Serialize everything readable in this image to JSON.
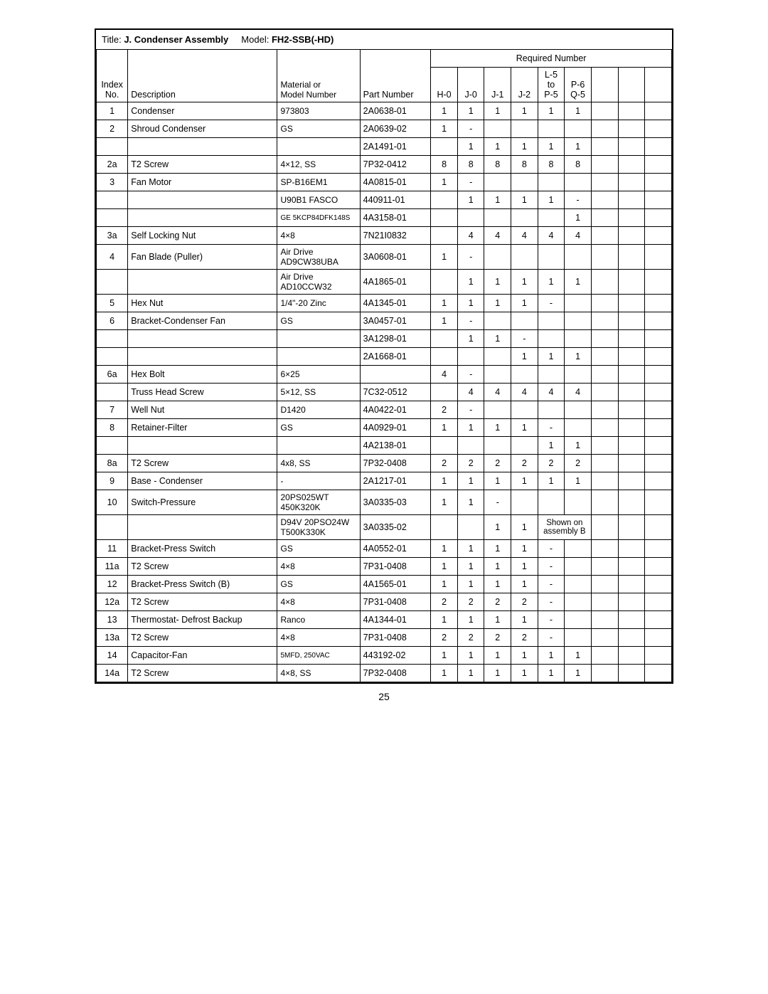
{
  "title_label": "Title:",
  "title_value": "J. Condenser Assembly",
  "model_label": "Model:",
  "model_value": "FH2-SSB(-HD)",
  "req_num_label": "Required Number",
  "headers": {
    "index": "Index\nNo.",
    "desc": "Description",
    "mat": "Material or\nModel Number",
    "part": "Part Number",
    "h0": "H-0",
    "j0": "J-0",
    "j1": "J-1",
    "j2": "J-2",
    "col5a": "L-5",
    "col5b": "to",
    "col5c": "P-5",
    "col6a": "P-6",
    "col6b": "Q-5"
  },
  "footnote": "Shown on assembly B",
  "page_num": "25",
  "rows": [
    {
      "idx": "1",
      "desc": "Condenser",
      "mat": "973803",
      "part": "2A0638-01",
      "v": [
        "1",
        "1",
        "1",
        "1",
        "1",
        "1",
        "",
        "",
        ""
      ]
    },
    {
      "idx": "2",
      "desc": "Shroud Condenser",
      "mat": "GS",
      "part": "2A0639-02",
      "v": [
        "1",
        "-",
        "",
        "",
        "",
        "",
        "",
        "",
        ""
      ]
    },
    {
      "idx": "",
      "desc": "",
      "mat": "",
      "part": "2A1491-01",
      "v": [
        "",
        "1",
        "1",
        "1",
        "1",
        "1",
        "",
        "",
        ""
      ]
    },
    {
      "idx": "2a",
      "desc": "T2 Screw",
      "mat": "4×12, SS",
      "part": "7P32-0412",
      "v": [
        "8",
        "8",
        "8",
        "8",
        "8",
        "8",
        "",
        "",
        ""
      ]
    },
    {
      "idx": "3",
      "desc": "Fan Motor",
      "mat": "SP-B16EM1",
      "part": "4A0815-01",
      "v": [
        "1",
        "-",
        "",
        "",
        "",
        "",
        "",
        "",
        ""
      ]
    },
    {
      "idx": "",
      "desc": "",
      "mat": "U90B1 FASCO",
      "part": "440911-01",
      "v": [
        "",
        "1",
        "1",
        "1",
        "1",
        "-",
        "",
        "",
        ""
      ]
    },
    {
      "idx": "",
      "desc": "",
      "mat": "GE 5KCP84DFK148S",
      "mat_small": true,
      "part": "4A3158-01",
      "v": [
        "",
        "",
        "",
        "",
        "",
        "1",
        "",
        "",
        ""
      ]
    },
    {
      "idx": "3a",
      "desc": "Self Locking Nut",
      "mat": "4×8",
      "part": "7N21I0832",
      "v": [
        "",
        "4",
        "4",
        "4",
        "4",
        "4",
        "",
        "",
        ""
      ]
    },
    {
      "idx": "4",
      "desc": "Fan Blade (Puller)",
      "mat": "Air Drive AD9CW38UBA",
      "part": "3A0608-01",
      "v": [
        "1",
        "-",
        "",
        "",
        "",
        "",
        "",
        "",
        ""
      ]
    },
    {
      "idx": "",
      "desc": "",
      "mat": "Air Drive AD10CCW32",
      "part": "4A1865-01",
      "v": [
        "",
        "1",
        "1",
        "1",
        "1",
        "1",
        "",
        "",
        ""
      ]
    },
    {
      "idx": "5",
      "desc": "Hex Nut",
      "mat": "1/4\"-20 Zinc",
      "part": "4A1345-01",
      "v": [
        "1",
        "1",
        "1",
        "1",
        "-",
        "",
        "",
        "",
        ""
      ]
    },
    {
      "idx": "6",
      "desc": "Bracket-Condenser Fan",
      "mat": "GS",
      "part": "3A0457-01",
      "v": [
        "1",
        "-",
        "",
        "",
        "",
        "",
        "",
        "",
        ""
      ]
    },
    {
      "idx": "",
      "desc": "",
      "mat": "",
      "part": "3A1298-01",
      "v": [
        "",
        "1",
        "1",
        "-",
        "",
        "",
        "",
        "",
        ""
      ]
    },
    {
      "idx": "",
      "desc": "",
      "mat": "",
      "part": "2A1668-01",
      "v": [
        "",
        "",
        "",
        "1",
        "1",
        "1",
        "",
        "",
        ""
      ]
    },
    {
      "idx": "6a",
      "desc": "Hex Bolt",
      "mat": "6×25",
      "part": "",
      "v": [
        "4",
        "-",
        "",
        "",
        "",
        "",
        "",
        "",
        ""
      ]
    },
    {
      "idx": "",
      "desc": "Truss Head Screw",
      "mat": "5×12, SS",
      "part": "7C32-0512",
      "v": [
        "",
        "4",
        "4",
        "4",
        "4",
        "4",
        "",
        "",
        ""
      ]
    },
    {
      "idx": "7",
      "desc": "Well Nut",
      "mat": "D1420",
      "part": "4A0422-01",
      "v": [
        "2",
        "-",
        "",
        "",
        "",
        "",
        "",
        "",
        ""
      ]
    },
    {
      "idx": "8",
      "desc": "Retainer-Filter",
      "mat": "GS",
      "part": "4A0929-01",
      "v": [
        "1",
        "1",
        "1",
        "1",
        "-",
        "",
        "",
        "",
        ""
      ]
    },
    {
      "idx": "",
      "desc": "",
      "mat": "",
      "part": "4A2138-01",
      "v": [
        "",
        "",
        "",
        "",
        "1",
        "1",
        "",
        "",
        ""
      ]
    },
    {
      "idx": "8a",
      "desc": "T2 Screw",
      "mat": "4x8, SS",
      "part": "7P32-0408",
      "v": [
        "2",
        "2",
        "2",
        "2",
        "2",
        "2",
        "",
        "",
        ""
      ]
    },
    {
      "idx": "9",
      "desc": "Base - Condenser",
      "mat": "-",
      "part": "2A1217-01",
      "v": [
        "1",
        "1",
        "1",
        "1",
        "1",
        "1",
        "",
        "",
        ""
      ]
    },
    {
      "idx": "10",
      "desc": "Switch-Pressure",
      "mat": "20PS025WT 450K320K",
      "part": "3A0335-03",
      "v": [
        "1",
        "1",
        "-",
        "",
        "",
        "",
        "",
        "",
        ""
      ]
    },
    {
      "idx": "",
      "desc": "",
      "mat": "D94V 20PSO24W T500K330K",
      "part": "3A0335-02",
      "v": [
        "",
        "",
        "1",
        "1",
        "",
        "",
        "",
        "",
        ""
      ],
      "note": true
    },
    {
      "idx": "11",
      "desc": "Bracket-Press Switch",
      "mat": "GS",
      "part": "4A0552-01",
      "v": [
        "1",
        "1",
        "1",
        "1",
        "-",
        "",
        "",
        "",
        ""
      ]
    },
    {
      "idx": "11a",
      "desc": "T2 Screw",
      "mat": "4×8",
      "part": "7P31-0408",
      "v": [
        "1",
        "1",
        "1",
        "1",
        "-",
        "",
        "",
        "",
        ""
      ]
    },
    {
      "idx": "12",
      "desc": "Bracket-Press Switch (B)",
      "mat": "GS",
      "part": "4A1565-01",
      "v": [
        "1",
        "1",
        "1",
        "1",
        "-",
        "",
        "",
        "",
        ""
      ]
    },
    {
      "idx": "12a",
      "desc": "T2 Screw",
      "mat": "4×8",
      "part": "7P31-0408",
      "v": [
        "2",
        "2",
        "2",
        "2",
        "-",
        "",
        "",
        "",
        ""
      ]
    },
    {
      "idx": "13",
      "desc": "Thermostat- Defrost Backup",
      "mat": "Ranco",
      "part": "4A1344-01",
      "v": [
        "1",
        "1",
        "1",
        "1",
        "-",
        "",
        "",
        "",
        ""
      ]
    },
    {
      "idx": "13a",
      "desc": "T2 Screw",
      "mat": "4×8",
      "part": "7P31-0408",
      "v": [
        "2",
        "2",
        "2",
        "2",
        "-",
        "",
        "",
        "",
        ""
      ]
    },
    {
      "idx": "14",
      "desc": "Capacitor-Fan",
      "mat": "5MFD, 250VAC",
      "mat_small": true,
      "part": "443192-02",
      "v": [
        "1",
        "1",
        "1",
        "1",
        "1",
        "1",
        "",
        "",
        ""
      ]
    },
    {
      "idx": "14a",
      "desc": "T2 Screw",
      "mat": "4×8, SS",
      "part": "7P32-0408",
      "v": [
        "1",
        "1",
        "1",
        "1",
        "1",
        "1",
        "",
        "",
        ""
      ]
    }
  ]
}
